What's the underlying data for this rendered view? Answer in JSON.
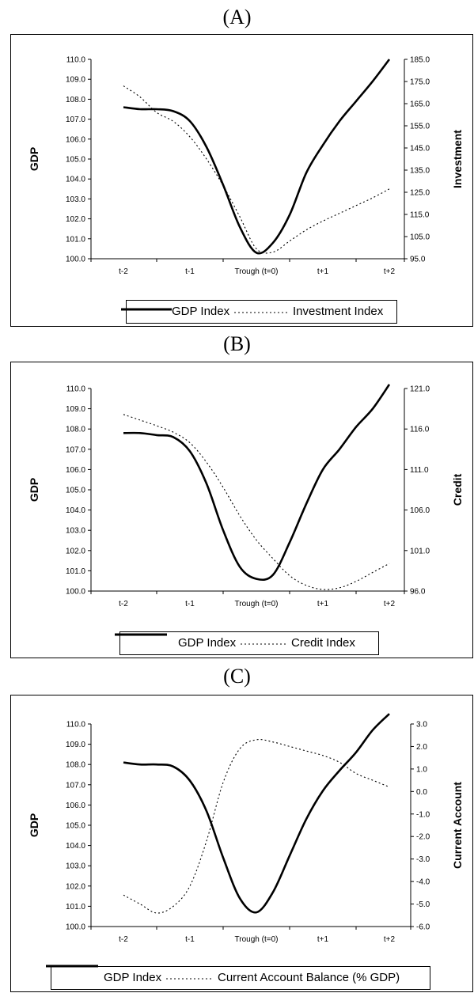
{
  "panels": [
    {
      "letter": "(A)",
      "chart": {
        "type": "line",
        "categories": [
          "t-2",
          "t-1",
          "Trough (t=0)",
          "t+1",
          "t+2"
        ],
        "ylabel_left": "GDP",
        "ylabel_right": "Investment",
        "ylim_left": [
          100.0,
          110.0
        ],
        "ylim_right": [
          95.0,
          185.0
        ],
        "left_ticks": [
          "100.0",
          "101.0",
          "102.0",
          "103.0",
          "104.0",
          "105.0",
          "106.0",
          "107.0",
          "108.0",
          "109.0",
          "110.0"
        ],
        "right_ticks": [
          "95.0",
          "105.0",
          "115.0",
          "125.0",
          "135.0",
          "145.0",
          "155.0",
          "165.0",
          "175.0",
          "185.0"
        ],
        "x": [
          -2.0,
          -1.75,
          -1.5,
          -1.25,
          -1.0,
          -0.75,
          -0.5,
          -0.25,
          0.0,
          0.25,
          0.5,
          0.75,
          1.0,
          1.25,
          1.5,
          1.75,
          2.0
        ],
        "series": [
          {
            "name": "GDP Index",
            "axis": "left",
            "style": "solid",
            "values": [
              107.6,
              107.5,
              107.5,
              107.4,
              106.9,
              105.6,
              103.7,
              101.6,
              100.3,
              100.8,
              102.2,
              104.3,
              105.7,
              106.9,
              107.9,
              108.9,
              110.0
            ]
          },
          {
            "name": "Investment Index",
            "axis": "right",
            "style": "dotted",
            "values": [
              173.0,
              168.0,
              161.0,
              157.0,
              150.0,
              140.0,
              128.0,
              114.0,
              99.5,
              98.0,
              103.0,
              108.0,
              112.0,
              115.5,
              119.0,
              122.5,
              126.5
            ]
          }
        ]
      },
      "legend": {
        "gdp": "GDP Index",
        "other": "Investment Index"
      }
    },
    {
      "letter": "(B)",
      "chart": {
        "type": "line",
        "categories": [
          "t-2",
          "t-1",
          "Trough (t=0)",
          "t+1",
          "t+2"
        ],
        "ylabel_left": "GDP",
        "ylabel_right": "Credit",
        "ylim_left": [
          100.0,
          110.0
        ],
        "ylim_right": [
          96.0,
          121.0
        ],
        "left_ticks": [
          "100.0",
          "101.0",
          "102.0",
          "103.0",
          "104.0",
          "105.0",
          "106.0",
          "107.0",
          "108.0",
          "109.0",
          "110.0"
        ],
        "right_ticks": [
          "96.0",
          "101.0",
          "106.0",
          "111.0",
          "116.0",
          "121.0"
        ],
        "x": [
          -2.0,
          -1.75,
          -1.5,
          -1.25,
          -1.0,
          -0.75,
          -0.5,
          -0.25,
          0.0,
          0.25,
          0.5,
          0.75,
          1.0,
          1.25,
          1.5,
          1.75,
          2.0
        ],
        "series": [
          {
            "name": "GDP Index",
            "axis": "left",
            "style": "solid",
            "values": [
              107.8,
              107.8,
              107.7,
              107.6,
              106.9,
              105.3,
              103.0,
              101.2,
              100.6,
              100.8,
              102.4,
              104.3,
              106.0,
              107.0,
              108.1,
              109.0,
              110.2
            ]
          },
          {
            "name": "Credit Index",
            "axis": "right",
            "style": "dotted",
            "values": [
              117.8,
              117.1,
              116.4,
              115.6,
              114.3,
              111.9,
              108.8,
              105.3,
              102.3,
              100.0,
              97.9,
              96.7,
              96.2,
              96.4,
              97.2,
              98.3,
              99.4
            ]
          }
        ]
      },
      "legend": {
        "gdp": "GDP Index",
        "other": "Credit Index"
      }
    },
    {
      "letter": "(C)",
      "chart": {
        "type": "line",
        "categories": [
          "t-2",
          "t-1",
          "Trough (t=0)",
          "t+1",
          "t+2"
        ],
        "ylabel_left": "GDP",
        "ylabel_right": "Current Account",
        "ylim_left": [
          100.0,
          110.0
        ],
        "ylim_right": [
          -6.0,
          3.0
        ],
        "left_ticks": [
          "100.0",
          "101.0",
          "102.0",
          "103.0",
          "104.0",
          "105.0",
          "106.0",
          "107.0",
          "108.0",
          "109.0",
          "110.0"
        ],
        "right_ticks": [
          "-6.0",
          "-5.0",
          "-4.0",
          "-3.0",
          "-2.0",
          "-1.0",
          "0.0",
          "1.0",
          "2.0",
          "3.0"
        ],
        "x": [
          -2.0,
          -1.75,
          -1.5,
          -1.25,
          -1.0,
          -0.75,
          -0.5,
          -0.25,
          0.0,
          0.25,
          0.5,
          0.75,
          1.0,
          1.25,
          1.5,
          1.75,
          2.0
        ],
        "series": [
          {
            "name": "GDP Index",
            "axis": "left",
            "style": "solid",
            "values": [
              108.1,
              108.0,
              108.0,
              107.9,
              107.2,
              105.7,
              103.4,
              101.4,
              100.7,
              101.7,
              103.5,
              105.3,
              106.7,
              107.7,
              108.6,
              109.7,
              110.5
            ]
          },
          {
            "name": "Current Account Balance (% GDP)",
            "axis": "right",
            "style": "dotted",
            "values": [
              -4.6,
              -5.0,
              -5.4,
              -5.1,
              -4.2,
              -2.2,
              0.4,
              1.9,
              2.3,
              2.2,
              2.0,
              1.8,
              1.6,
              1.3,
              0.8,
              0.5,
              0.2
            ]
          }
        ]
      },
      "legend": {
        "gdp": "GDP Index",
        "other": "Current Account Balance (% GDP)"
      }
    }
  ]
}
